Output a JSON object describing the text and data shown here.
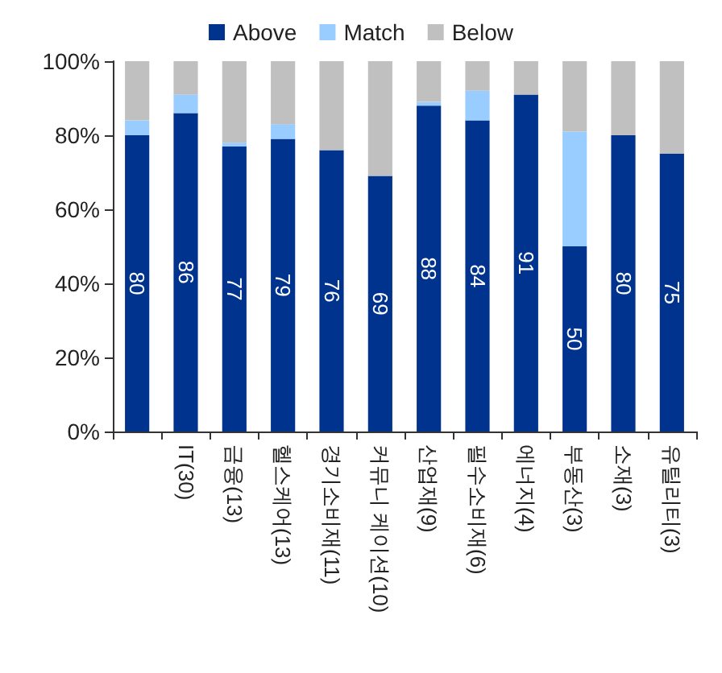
{
  "chart_data": {
    "type": "bar",
    "stacked": true,
    "categories": [
      null,
      "IT(30)",
      "금융(13)",
      "헬스케어(13)",
      "경기소비재(11)",
      "커뮤니 케이션(10)",
      "산업재(9)",
      "필수소비재(6)",
      "에너지(4)",
      "부동산(3)",
      "소재(3)",
      "유틸리티(3)"
    ],
    "series": [
      {
        "name": "Above",
        "color": "#00338d",
        "values": [
          80,
          86,
          77,
          79,
          76,
          69,
          88,
          84,
          91,
          50,
          80,
          75
        ],
        "value_labels": [
          "80",
          "86",
          "77",
          "79",
          "76",
          "69",
          "88",
          "84",
          "91",
          "50",
          "80",
          "75"
        ]
      },
      {
        "name": "Match",
        "color": "#99ccff",
        "values": [
          4,
          5,
          1,
          4,
          0,
          0,
          1,
          8,
          0,
          31,
          0,
          0
        ]
      },
      {
        "name": "Below",
        "color": "#c0c0c0",
        "values": [
          16,
          9,
          22,
          17,
          24,
          31,
          11,
          8,
          9,
          19,
          20,
          25
        ]
      }
    ],
    "ylim": [
      0,
      100
    ],
    "yticks": [
      {
        "value": 0,
        "label": "0%"
      },
      {
        "value": 20,
        "label": "20%"
      },
      {
        "value": 40,
        "label": "40%"
      },
      {
        "value": 60,
        "label": "60%"
      },
      {
        "value": 80,
        "label": "80%"
      },
      {
        "value": 100,
        "label": "100%"
      }
    ],
    "legend": "top",
    "grid": false
  }
}
